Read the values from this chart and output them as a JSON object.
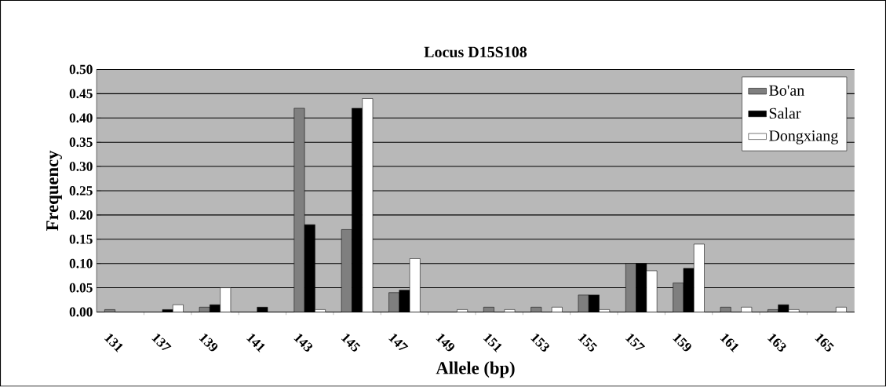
{
  "chart_data": {
    "type": "bar",
    "title": "Locus D15S108",
    "xlabel": "Allele (bp)",
    "ylabel": "Frequency",
    "categories": [
      "131",
      "137",
      "139",
      "141",
      "143",
      "145",
      "147",
      "149",
      "151",
      "153",
      "155",
      "157",
      "159",
      "161",
      "163",
      "165"
    ],
    "series": [
      {
        "name": "Bo'an",
        "color": "#7f7f7f",
        "values": [
          0.005,
          null,
          0.01,
          null,
          0.42,
          0.17,
          0.04,
          null,
          0.01,
          0.01,
          0.035,
          0.1,
          0.06,
          0.01,
          0.005,
          null
        ]
      },
      {
        "name": "Salar",
        "color": "#000000",
        "values": [
          null,
          0.005,
          0.015,
          0.01,
          0.18,
          0.42,
          0.045,
          null,
          null,
          null,
          0.035,
          0.1,
          0.09,
          null,
          0.015,
          null
        ]
      },
      {
        "name": "Dongxiang",
        "color": "#ffffff",
        "values": [
          null,
          0.015,
          0.05,
          null,
          0.005,
          0.44,
          0.11,
          0.005,
          0.005,
          0.01,
          0.005,
          0.085,
          0.14,
          0.01,
          0.005,
          0.01
        ]
      }
    ],
    "ylim": [
      0,
      0.5
    ],
    "yticks": [
      {
        "value": 0,
        "label": "0.00"
      },
      {
        "value": 0.05,
        "label": "0.05"
      },
      {
        "value": 0.1,
        "label": "0.10"
      },
      {
        "value": 0.15,
        "label": "0.15"
      },
      {
        "value": 0.2,
        "label": "0.20"
      },
      {
        "value": 0.25,
        "label": "0.25"
      },
      {
        "value": 0.3,
        "label": "0.30"
      },
      {
        "value": 0.35,
        "label": "0.35"
      },
      {
        "value": 0.4,
        "label": "0.40"
      },
      {
        "value": 0.45,
        "label": "0.45"
      },
      {
        "value": 0.5,
        "label": "0.50"
      }
    ],
    "grid": "y",
    "legend": "top right"
  }
}
